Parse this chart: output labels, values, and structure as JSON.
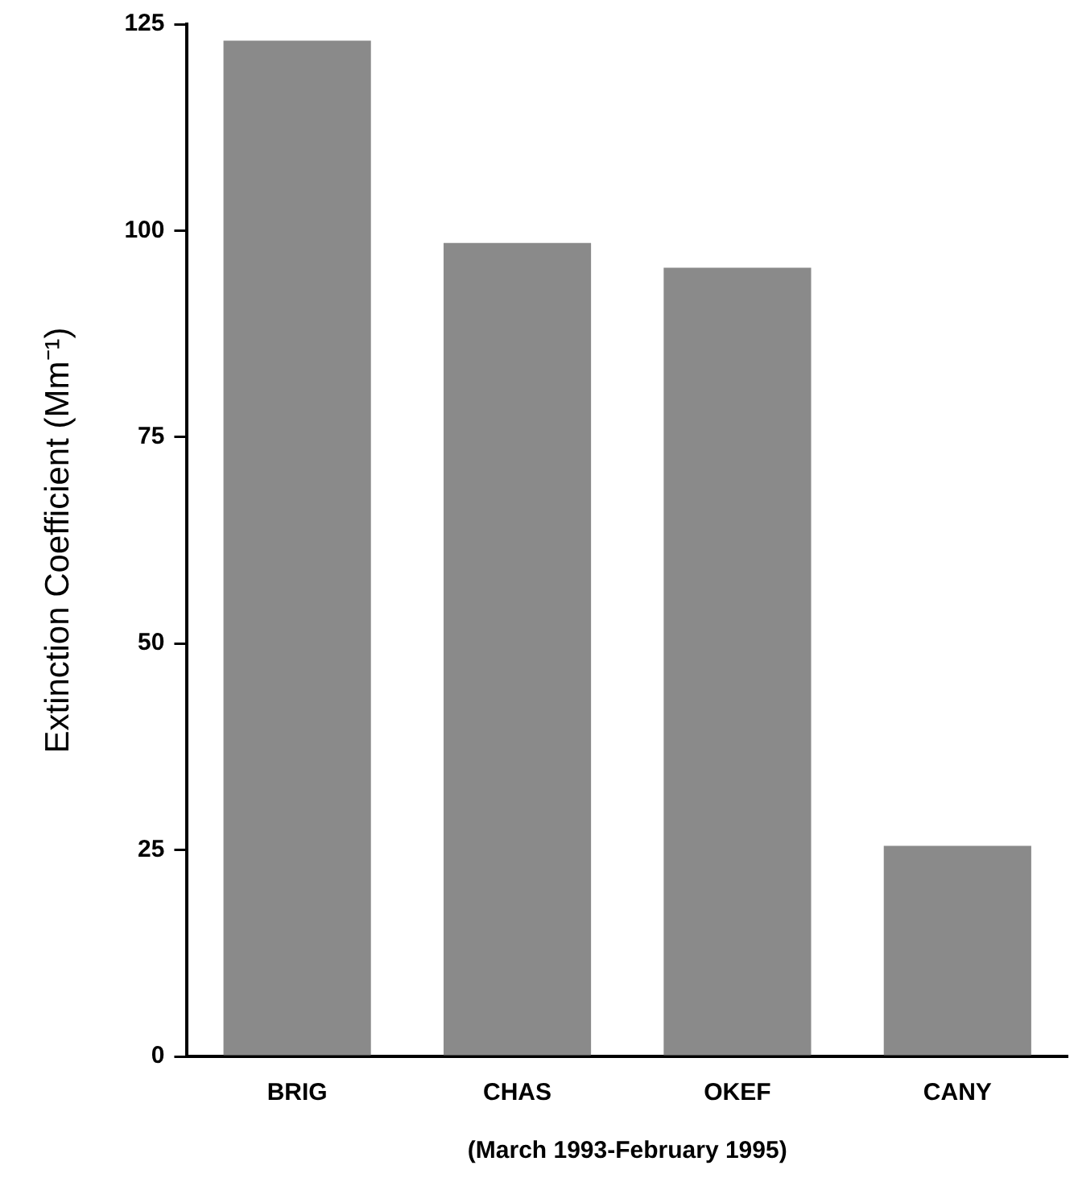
{
  "chart_data": {
    "type": "bar",
    "ylabel": "Extinction Coefficient (Mm⁻¹)",
    "xlabel": "(March 1993-February 1995)",
    "categories": [
      "BRIG",
      "CHAS",
      "OKEF",
      "CANY"
    ],
    "values": [
      123,
      98.5,
      95.5,
      25.5
    ],
    "color": "#8a8a8a",
    "ylim": [
      0,
      125
    ],
    "yticks": [
      0,
      25,
      50,
      75,
      100,
      125
    ],
    "grid": false,
    "legend": false
  }
}
